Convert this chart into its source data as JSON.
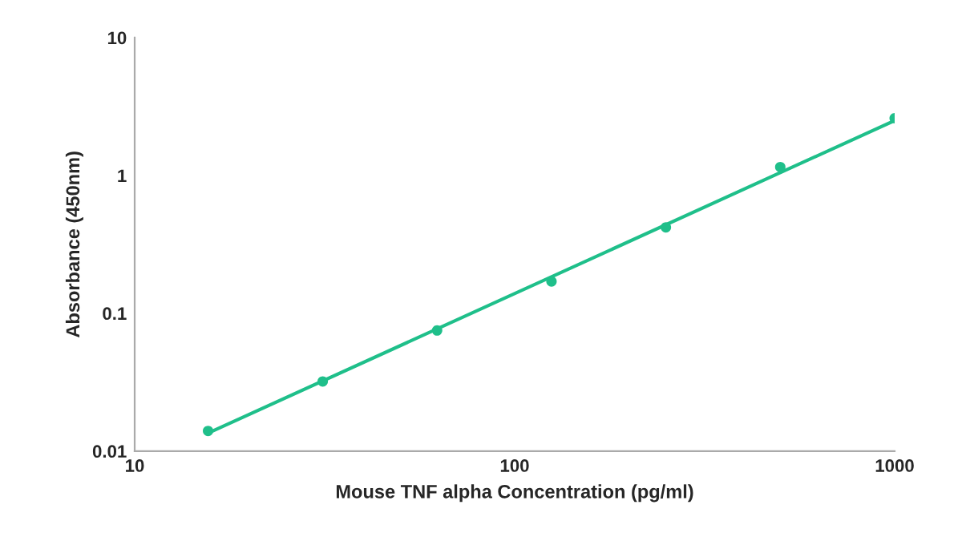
{
  "chart_data": {
    "type": "scatter",
    "xlabel": "Mouse TNF alpha Concentration (pg/ml)",
    "ylabel": "Absorbance (450nm)",
    "log": "xy",
    "grid": false,
    "marker": "circle",
    "series": [
      {
        "color": "#1fbf8a",
        "x": [
          15.6,
          31.25,
          62.5,
          125,
          250,
          500,
          1000
        ],
        "values": [
          0.014,
          0.032,
          0.075,
          0.17,
          0.42,
          1.15,
          2.6
        ]
      },
      {
        "type": "line",
        "color": "#1fbf8a",
        "line_style": "solid",
        "marker": "none",
        "x": [
          15.6,
          1000
        ],
        "values": [
          0.0135,
          2.5
        ]
      }
    ],
    "xlim": [
      10,
      1000
    ],
    "ylim": [
      0.01,
      10
    ],
    "xticks": [
      10,
      100,
      1000
    ],
    "yticks": [
      0.01,
      0.1,
      1,
      10
    ]
  }
}
